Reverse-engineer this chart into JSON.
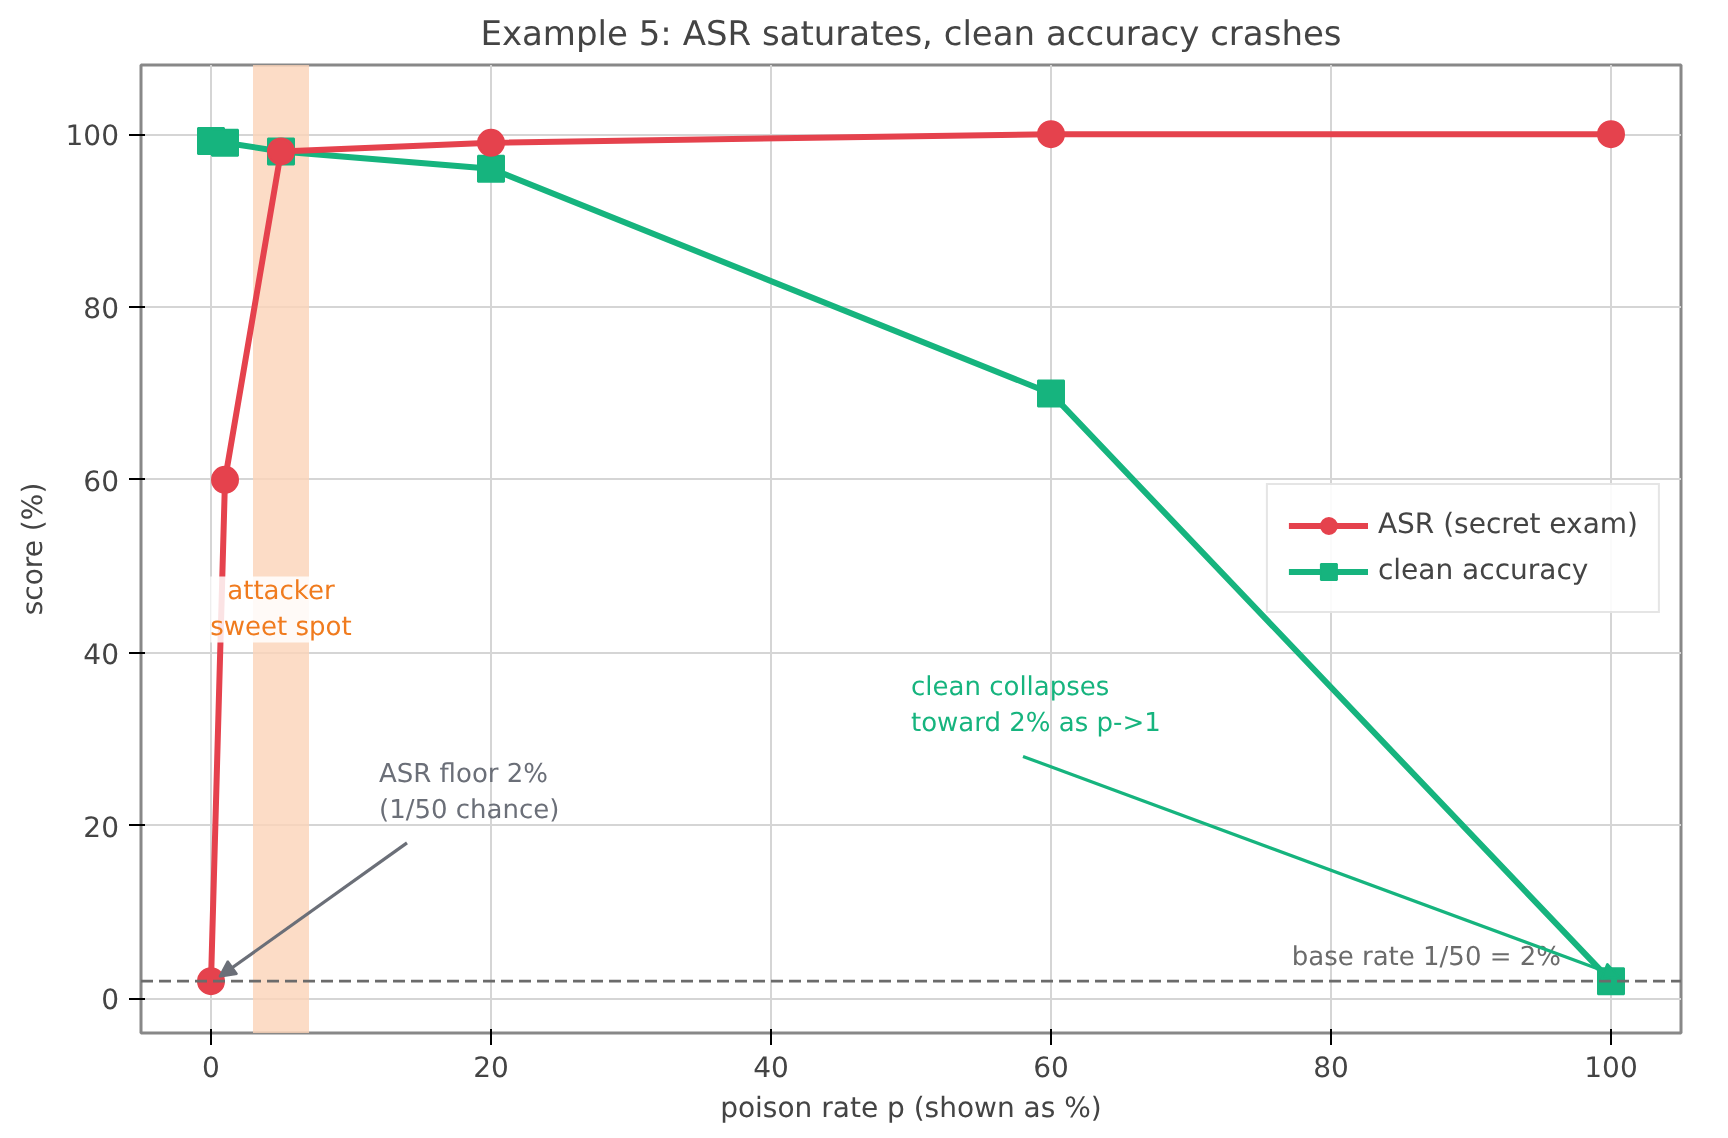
{
  "chart_data": {
    "type": "line",
    "title": "Example 5: ASR saturates, clean accuracy crashes",
    "xlabel": "poison rate p (shown as %)",
    "ylabel": "score (%)",
    "xlim": [
      -5,
      105
    ],
    "ylim": [
      -4,
      108
    ],
    "xticks": [
      0,
      20,
      40,
      60,
      80,
      100
    ],
    "yticks": [
      0,
      20,
      40,
      60,
      80,
      100
    ],
    "grid": true,
    "legend": "right",
    "line_style": "solid",
    "series": [
      {
        "name": "ASR (secret exam)",
        "color": "#e5424d",
        "marker": "circle",
        "x": [
          0,
          1,
          5,
          20,
          60,
          100
        ],
        "values": [
          2,
          60,
          98,
          99,
          100,
          100
        ]
      },
      {
        "name": "clean accuracy",
        "color": "#16b47e",
        "marker": "square",
        "x": [
          0,
          1,
          5,
          20,
          60,
          100
        ],
        "values": [
          99.2,
          99,
          98,
          96,
          70,
          2
        ]
      }
    ],
    "bands": [
      {
        "axis": "x",
        "from": 3,
        "to": 7,
        "label": "attacker\nsweet spot",
        "color": "#fbd3b8"
      }
    ],
    "ref_lines": [
      {
        "axis": "y",
        "value": 2,
        "label": "base rate 1/50 = 2%",
        "color": "#6b6b6b",
        "line_style": "dashed"
      }
    ],
    "annotations": [
      {
        "text": "ASR floor 2%\n(1/50 chance)",
        "x": 0,
        "y": 2
      },
      {
        "text": "clean collapses\ntoward 2% as p->1",
        "x": 100,
        "y": 2
      }
    ]
  }
}
